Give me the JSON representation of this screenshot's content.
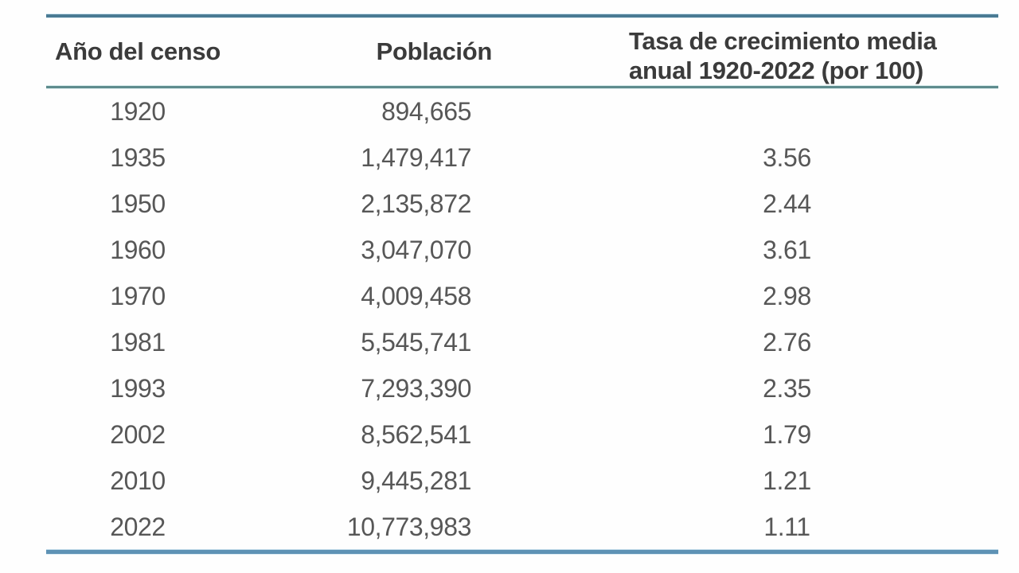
{
  "table": {
    "header": {
      "col1": "Año del censo",
      "col2": "Población",
      "col3_line1": "Tasa de crecimiento media",
      "col3_line2": "anual 1920-2022 (por 100)"
    },
    "rows": [
      {
        "year": "1920",
        "population": "894,665",
        "rate": ""
      },
      {
        "year": "1935",
        "population": "1,479,417",
        "rate": "3.56"
      },
      {
        "year": "1950",
        "population": "2,135,872",
        "rate": "2.44"
      },
      {
        "year": "1960",
        "population": "3,047,070",
        "rate": "3.61"
      },
      {
        "year": "1970",
        "population": "4,009,458",
        "rate": "2.98"
      },
      {
        "year": "1981",
        "population": "5,545,741",
        "rate": "2.76"
      },
      {
        "year": "1993",
        "population": "7,293,390",
        "rate": "2.35"
      },
      {
        "year": "2002",
        "population": "8,562,541",
        "rate": "1.79"
      },
      {
        "year": "2010",
        "population": "9,445,281",
        "rate": "1.21"
      },
      {
        "year": "2022",
        "population": "10,773,983",
        "rate": "1.11"
      }
    ]
  },
  "chart_data": {
    "type": "table",
    "title": "",
    "columns": [
      "Año del censo",
      "Población",
      "Tasa de crecimiento media anual 1920-2022 (por 100)"
    ],
    "years": [
      1920,
      1935,
      1950,
      1960,
      1970,
      1981,
      1993,
      2002,
      2010,
      2022
    ],
    "population": [
      894665,
      1479417,
      2135872,
      3047070,
      4009458,
      5545741,
      7293390,
      8562541,
      9445281,
      10773983
    ],
    "growth_rate_per_100": [
      null,
      3.56,
      2.44,
      3.61,
      2.98,
      2.76,
      2.35,
      1.79,
      1.21,
      1.11
    ]
  },
  "colors": {
    "rule_top": "#4b7b94",
    "rule_mid": "#5e8c8e",
    "rule_bottom": "#5e92b5",
    "header_text": "#3b3b3b",
    "data_text": "#575757",
    "background": "#fefefe"
  }
}
